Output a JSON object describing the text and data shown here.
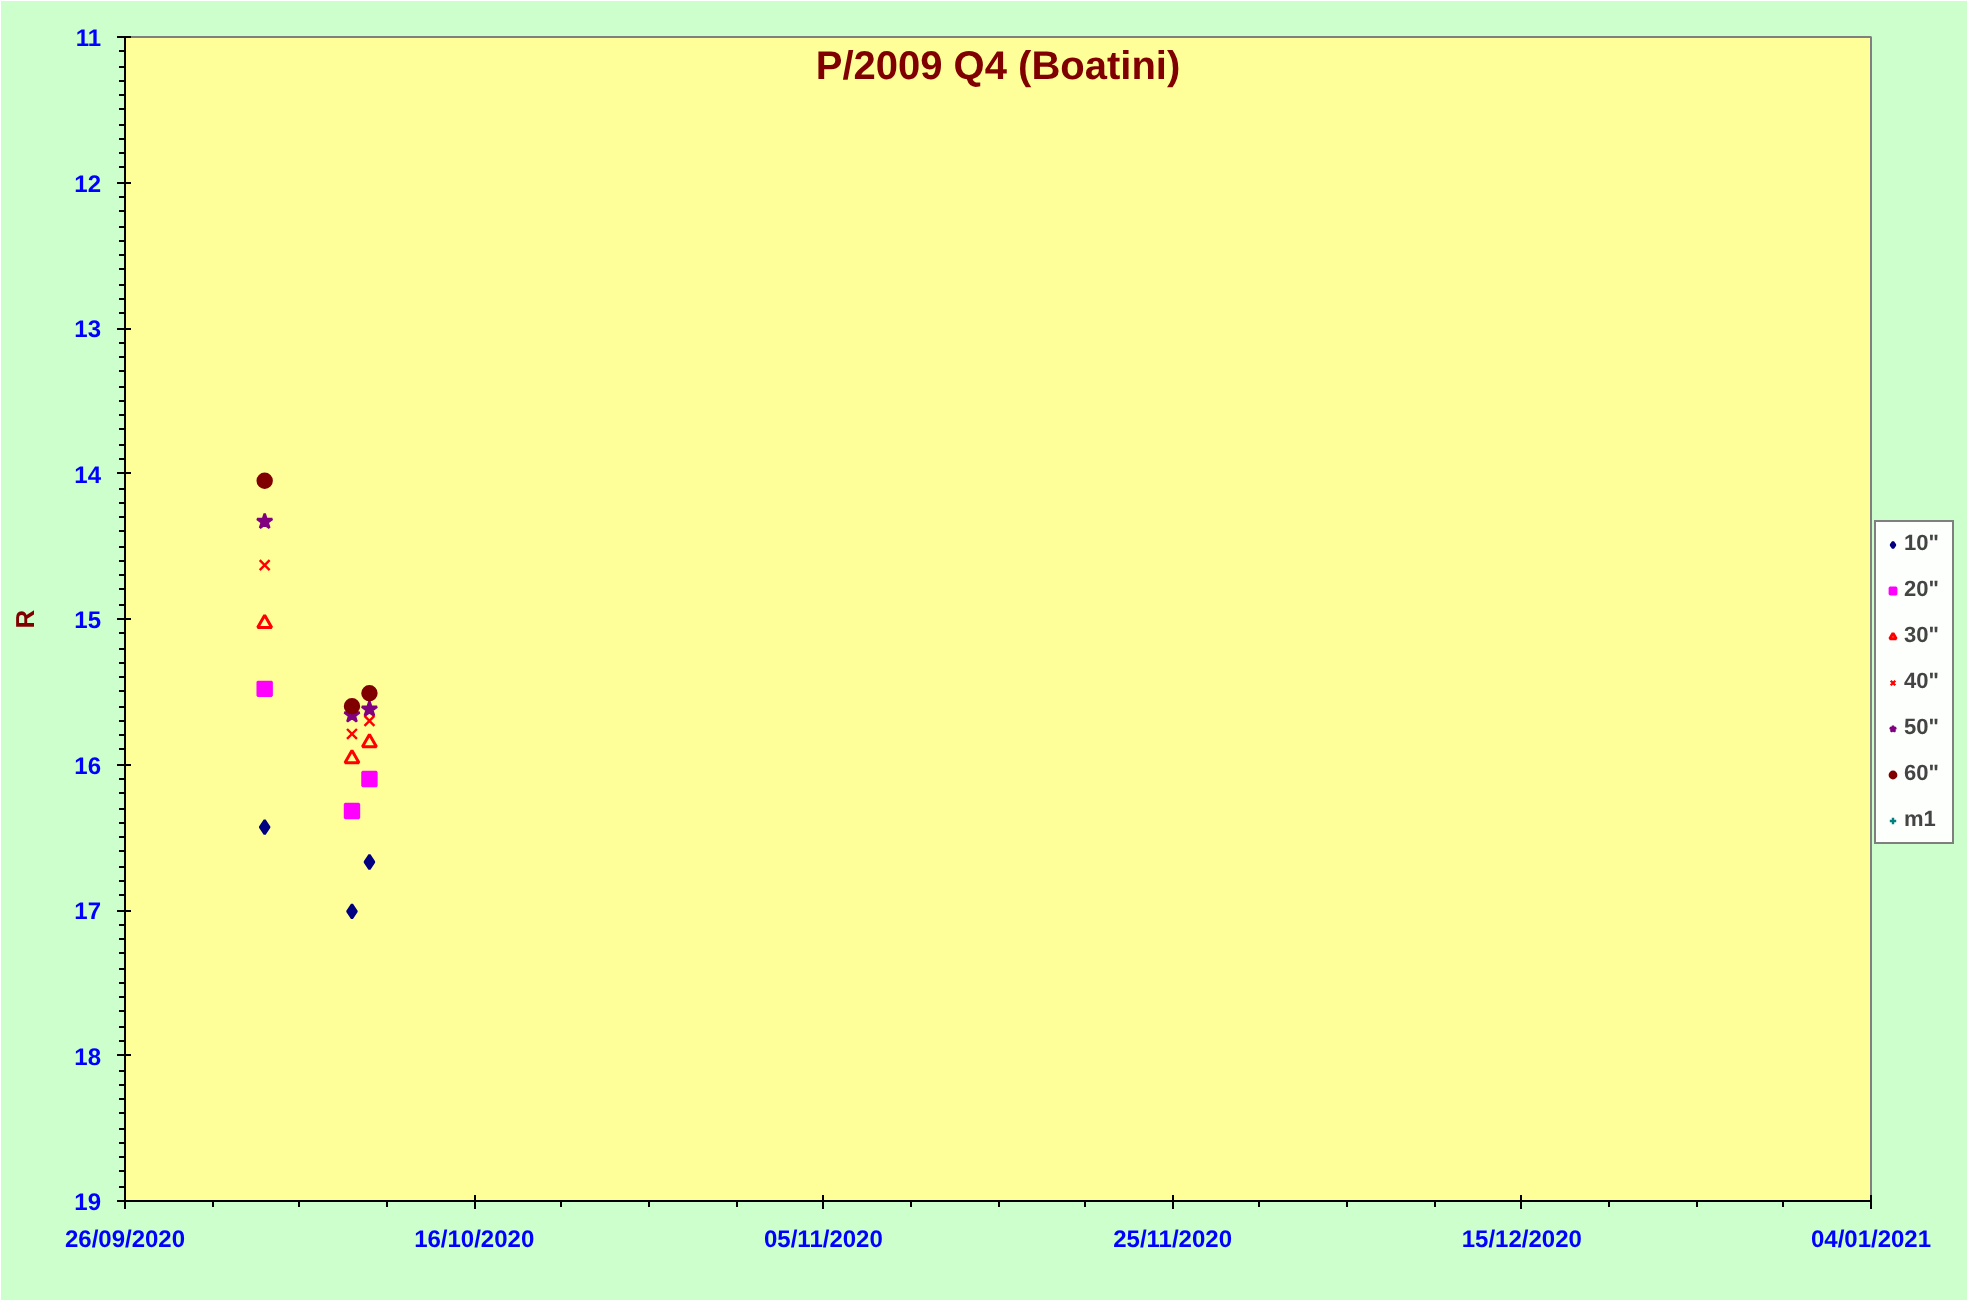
{
  "chart_data": {
    "type": "scatter",
    "title": "P/2009 Q4 (Boatini)",
    "ylabel": "R",
    "x": [
      "2020-10-04",
      "2020-10-09",
      "2020-10-10"
    ],
    "series": [
      {
        "name": "10\"",
        "color": "#000080",
        "marker": "diamond",
        "values": [
          16.43,
          17.01,
          16.67
        ]
      },
      {
        "name": "20\"",
        "color": "#ff00ff",
        "marker": "square",
        "values": [
          15.48,
          16.32,
          16.1
        ]
      },
      {
        "name": "30\"",
        "color": "#ff0000",
        "marker": "triangle",
        "values": [
          15.03,
          15.96,
          15.85
        ]
      },
      {
        "name": "40\"",
        "color": "#ff0000",
        "marker": "cross",
        "values": [
          14.63,
          15.79,
          15.7
        ]
      },
      {
        "name": "50\"",
        "color": "#800080",
        "marker": "star",
        "values": [
          14.33,
          15.66,
          15.62
        ]
      },
      {
        "name": "60\"",
        "color": "#800000",
        "marker": "circle",
        "values": [
          14.05,
          15.6,
          15.51
        ]
      },
      {
        "name": "m1",
        "color": "#008080",
        "marker": "plus",
        "values": [
          null,
          null,
          null
        ]
      }
    ],
    "xlim": [
      "2020-09-26",
      "2021-01-04"
    ],
    "xticks": [
      {
        "value": "2020-09-26",
        "label": "26/09/2020"
      },
      {
        "value": "2020-10-16",
        "label": "16/10/2020"
      },
      {
        "value": "2020-11-05",
        "label": "05/11/2020"
      },
      {
        "value": "2020-11-25",
        "label": "25/11/2020"
      },
      {
        "value": "2020-12-15",
        "label": "15/12/2020"
      },
      {
        "value": "2021-01-04",
        "label": "04/01/2021"
      }
    ],
    "ylim": [
      19,
      11
    ],
    "yticks": [
      11,
      12,
      13,
      14,
      15,
      16,
      17,
      18,
      19
    ],
    "grid": false,
    "legend": "right"
  }
}
